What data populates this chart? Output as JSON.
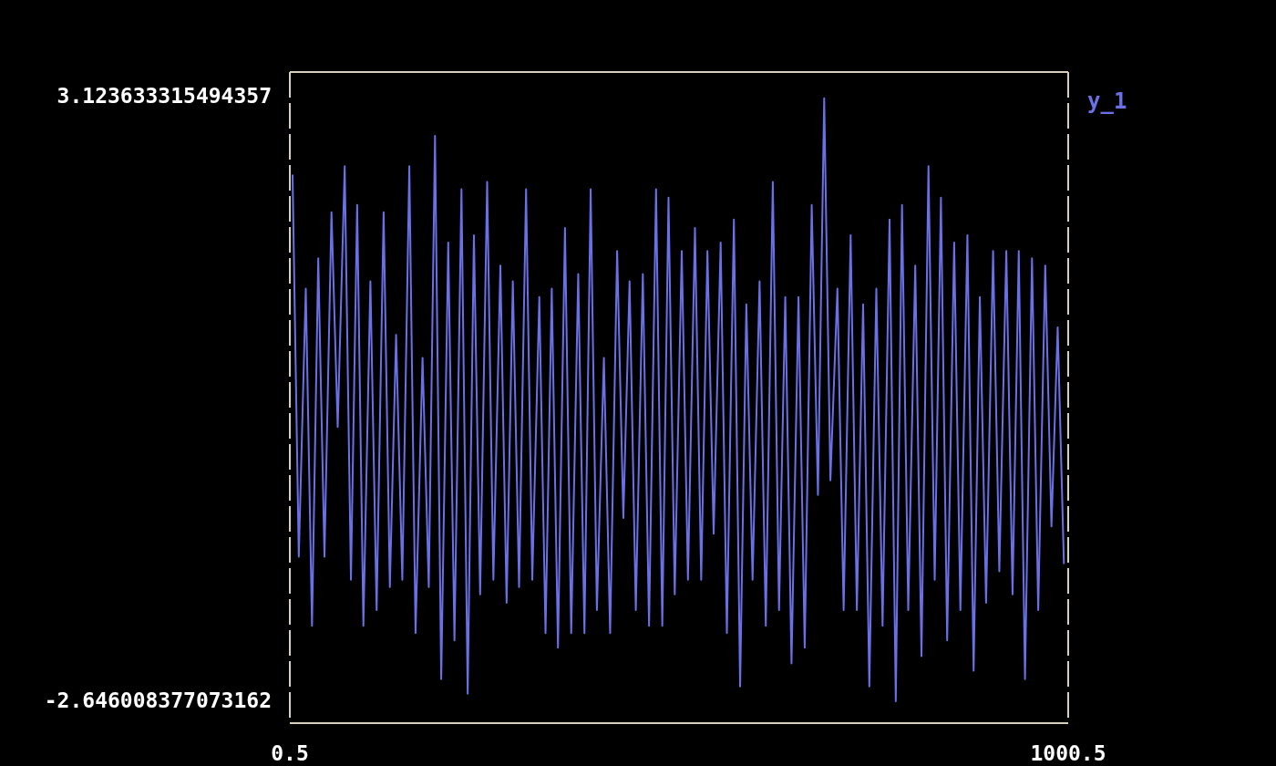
{
  "chart_data": {
    "type": "line",
    "x": [
      4,
      12,
      21,
      29,
      37,
      45,
      54,
      62,
      71,
      79,
      87,
      95,
      104,
      112,
      121,
      129,
      137,
      145,
      154,
      162,
      171,
      179,
      187,
      195,
      204,
      212,
      221,
      229,
      237,
      245,
      254,
      262,
      271,
      279,
      287,
      295,
      304,
      312,
      321,
      329,
      337,
      345,
      354,
      362,
      371,
      379,
      387,
      395,
      404,
      412,
      421,
      429,
      437,
      445,
      454,
      462,
      471,
      479,
      487,
      495,
      504,
      512,
      521,
      529,
      537,
      545,
      554,
      562,
      571,
      579,
      587,
      595,
      604,
      612,
      621,
      629,
      637,
      645,
      654,
      662,
      671,
      679,
      687,
      695,
      704,
      712,
      721,
      729,
      737,
      745,
      754,
      762,
      771,
      779,
      787,
      795,
      804,
      812,
      821,
      829,
      837,
      845,
      854,
      862,
      871,
      879,
      887,
      895,
      904,
      912,
      921,
      929,
      937,
      945,
      954,
      962,
      971,
      979,
      987,
      995
    ],
    "series": [
      {
        "name": "y_1",
        "color": "#6a70e6",
        "values": [
          2.39,
          -1.26,
          1.3,
          -1.92,
          1.59,
          -1.26,
          2.03,
          -0.02,
          2.47,
          -1.48,
          2.1,
          -1.92,
          1.37,
          -1.77,
          2.03,
          -1.55,
          0.86,
          -1.48,
          2.47,
          -1.99,
          0.64,
          -1.55,
          2.76,
          -2.43,
          1.74,
          -2.06,
          2.25,
          -2.57,
          1.81,
          -1.62,
          2.32,
          -1.48,
          1.52,
          -1.7,
          1.37,
          -1.55,
          2.25,
          -1.48,
          1.22,
          -1.99,
          1.3,
          -2.13,
          1.88,
          -1.99,
          1.44,
          -1.99,
          2.25,
          -1.77,
          0.64,
          -1.99,
          1.66,
          -0.89,
          1.37,
          -1.77,
          1.44,
          -1.92,
          2.25,
          -1.92,
          2.17,
          -1.62,
          1.66,
          -1.48,
          1.88,
          -1.48,
          1.66,
          -1.04,
          1.74,
          -1.99,
          1.96,
          -2.5,
          1.15,
          -1.48,
          1.37,
          -1.92,
          2.32,
          -1.77,
          1.22,
          -2.28,
          1.22,
          -2.13,
          2.1,
          -0.67,
          3.12,
          -0.53,
          1.3,
          -1.77,
          1.81,
          -1.77,
          1.15,
          -2.5,
          1.3,
          -1.92,
          1.96,
          -2.64,
          2.1,
          -1.77,
          1.52,
          -2.21,
          2.47,
          -1.48,
          2.17,
          -2.06,
          1.74,
          -1.77,
          1.81,
          -2.35,
          1.22,
          -1.7,
          1.66,
          -1.4,
          1.66,
          -1.62,
          1.66,
          -2.43,
          1.59,
          -1.77,
          1.52,
          -0.97,
          0.93,
          -1.33
        ]
      }
    ],
    "xlim": [
      0.5,
      1000.5
    ],
    "xticks": [
      0.5,
      1000.5
    ],
    "ylim": [
      -2.85,
      3.37
    ],
    "yticks": [
      -2.646008377073162,
      3.123633315494357
    ],
    "legend": "top right"
  }
}
